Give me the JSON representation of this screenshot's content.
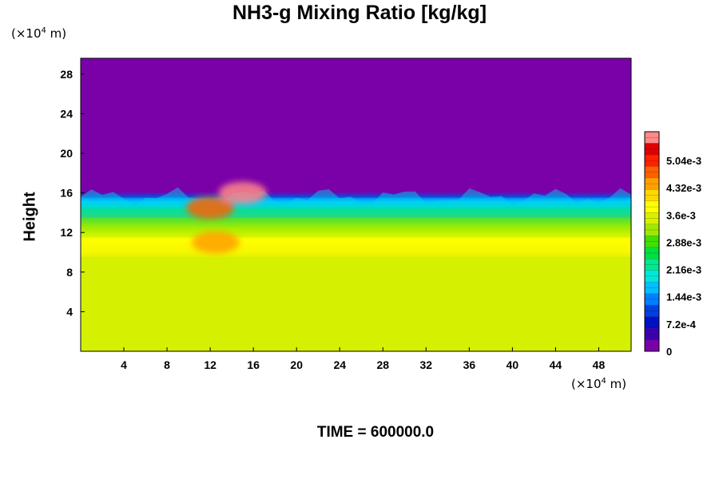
{
  "chart_data": {
    "type": "heatmap",
    "title": "NH3-g Mixing Ratio [kg/kg]",
    "ylabel": "Height",
    "x_unit": {
      "prefix": "(×10",
      "exp": "4",
      "suffix": " m)"
    },
    "y_unit": {
      "prefix": "(×10",
      "exp": "4",
      "suffix": " m)"
    },
    "x_ticks": [
      "4",
      "8",
      "12",
      "16",
      "20",
      "24",
      "28",
      "32",
      "36",
      "40",
      "44",
      "48"
    ],
    "y_ticks": [
      "4",
      "8",
      "12",
      "16",
      "20",
      "24",
      "28"
    ],
    "xlim": [
      0,
      51
    ],
    "ylim": [
      0,
      29.6
    ],
    "colorbar": {
      "min": 0,
      "max": 0.0058,
      "tick_labels": [
        "0",
        "7.2e-4",
        "1.44e-3",
        "2.16e-3",
        "2.88e-3",
        "3.6e-3",
        "4.32e-3",
        "5.04e-3"
      ],
      "tick_values": [
        0,
        0.00072,
        0.00144,
        0.00216,
        0.00288,
        0.0036,
        0.00432,
        0.00504
      ],
      "colors": [
        "#7a00a8",
        "#3c00b0",
        "#0010c8",
        "#0040e0",
        "#0080ff",
        "#00c0ff",
        "#00e8d8",
        "#00e890",
        "#00e040",
        "#40e000",
        "#a0e800",
        "#d8f000",
        "#ffff00",
        "#ffd800",
        "#ffa000",
        "#ff6000",
        "#ff2000",
        "#e00000",
        "#ff8888"
      ]
    },
    "field_bands": [
      {
        "y_from": 0,
        "y_to": 9.5,
        "value": 0.0036
      },
      {
        "y_from": 9.5,
        "y_to": 11.5,
        "value": 0.0039
      },
      {
        "y_from": 11.5,
        "y_to": 13.5,
        "value": 0.0031
      },
      {
        "y_from": 13.5,
        "y_to": 15.5,
        "value": 0.0018
      },
      {
        "y_from": 15.5,
        "y_to": 29.6,
        "value": 0.0
      }
    ],
    "hotspots": [
      {
        "x": 12.5,
        "y": 11.0,
        "value": 0.0045
      },
      {
        "x": 12.0,
        "y": 14.5,
        "value": 0.0046
      },
      {
        "x": 15.0,
        "y": 16.0,
        "value": 0.0056
      }
    ]
  },
  "time_label": "TIME = 600000.0"
}
